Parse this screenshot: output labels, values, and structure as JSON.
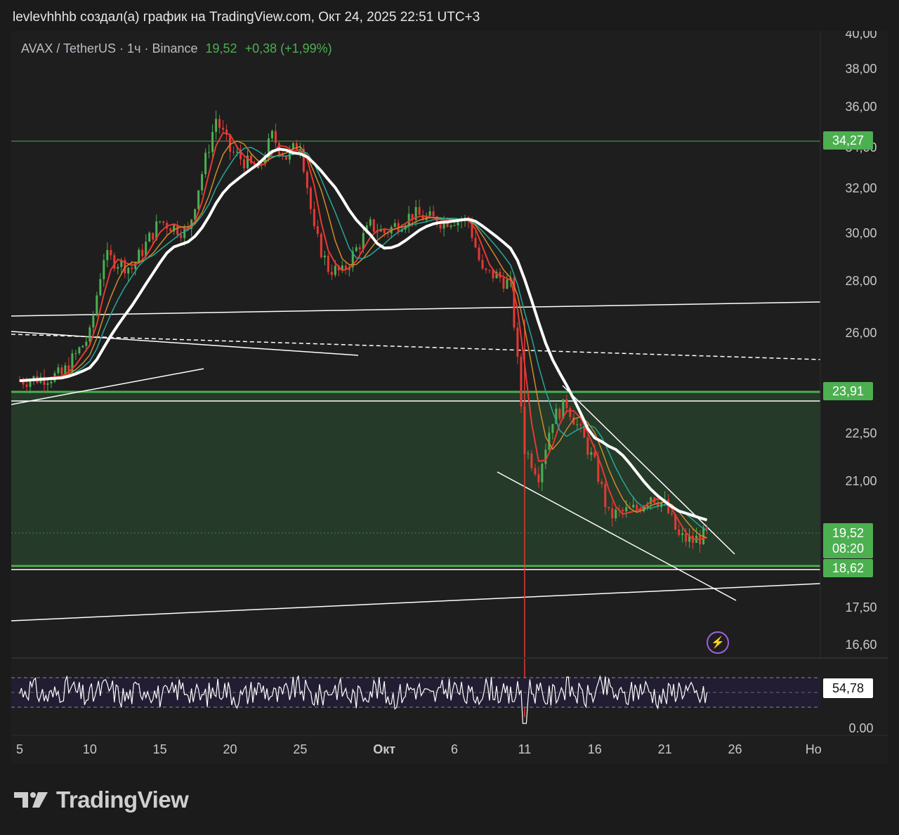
{
  "header": {
    "text": "levlevhhhb создал(а) график на TradingView.com, Окт 24, 2025 22:51 UTC+3"
  },
  "legend": {
    "symbol": "AVAX / TetherUS · 1ч · Binance",
    "price": "19,52",
    "change": "+0,38 (+1,99%)"
  },
  "price_labels": {
    "resistance": "34,27",
    "zone_top": "23,91",
    "current": "19,52",
    "countdown": "08:20",
    "zone_bottom": "18,62"
  },
  "rsi": {
    "value_label": "54,78",
    "zero_label": "0.00"
  },
  "logo": {
    "text": "TradingView"
  },
  "colors": {
    "background": "#1e1e1e",
    "up": "#4caf50",
    "down": "#e53935",
    "zone_fill": "#253a28",
    "ema_fast": "#e53935",
    "ema_mid": "#d08a2a",
    "ema_slow": "#26a69a",
    "ma_long": "#ffffff"
  },
  "chart_data": {
    "type": "line",
    "title": "AVAX / TetherUS · 1ч · Binance",
    "y_ticks": [
      "40,00",
      "38,00",
      "36,00",
      "34,00",
      "32,00",
      "30,00",
      "28,00",
      "26,00",
      "22,50",
      "21,00",
      "17,50",
      "16,60"
    ],
    "x_ticks": [
      "5",
      "10",
      "15",
      "20",
      "25",
      "Окт",
      "6",
      "11",
      "16",
      "21",
      "26",
      "Но"
    ],
    "ylim": [
      16.3,
      40.0
    ],
    "series": [
      {
        "name": "",
        "x": [
          "Sep 5",
          "Sep 8",
          "Sep 10",
          "Sep 11",
          "Sep 13",
          "Sep 15",
          "Sep 17",
          "Sep 19",
          "Sep 20",
          "Sep 22",
          "Sep 23",
          "Sep 24",
          "Sep 25",
          "Sep 26",
          "Sep 27",
          "Sep 28",
          "Sep 30",
          "Oct 1",
          "Oct 3",
          "Oct 5",
          "Oct 6",
          "Oct 7",
          "Oct 8",
          "Oct 9",
          "Oct 10",
          "Oct 11",
          "Oct 12",
          "Oct 13",
          "Oct 14",
          "Oct 15",
          "Oct 16",
          "Oct 17",
          "Oct 18",
          "Oct 19",
          "Oct 20",
          "Oct 21",
          "Oct 22",
          "Oct 23",
          "Oct 24"
        ],
        "values": [
          24.3,
          24.5,
          25.9,
          29.0,
          28.5,
          30.5,
          30.0,
          35.4,
          33.8,
          32.8,
          34.5,
          33.5,
          34.2,
          30.0,
          28.5,
          28.3,
          30.3,
          30.0,
          30.8,
          30.5,
          30.6,
          30.5,
          28.3,
          28.2,
          27.8,
          22.0,
          21.2,
          23.0,
          23.5,
          22.5,
          21.5,
          20.0,
          20.1,
          20.2,
          20.6,
          20.3,
          19.4,
          19.3,
          19.5
        ]
      }
    ],
    "rsi": {
      "levels": [
        70,
        50,
        30
      ],
      "current": 54.78
    }
  }
}
